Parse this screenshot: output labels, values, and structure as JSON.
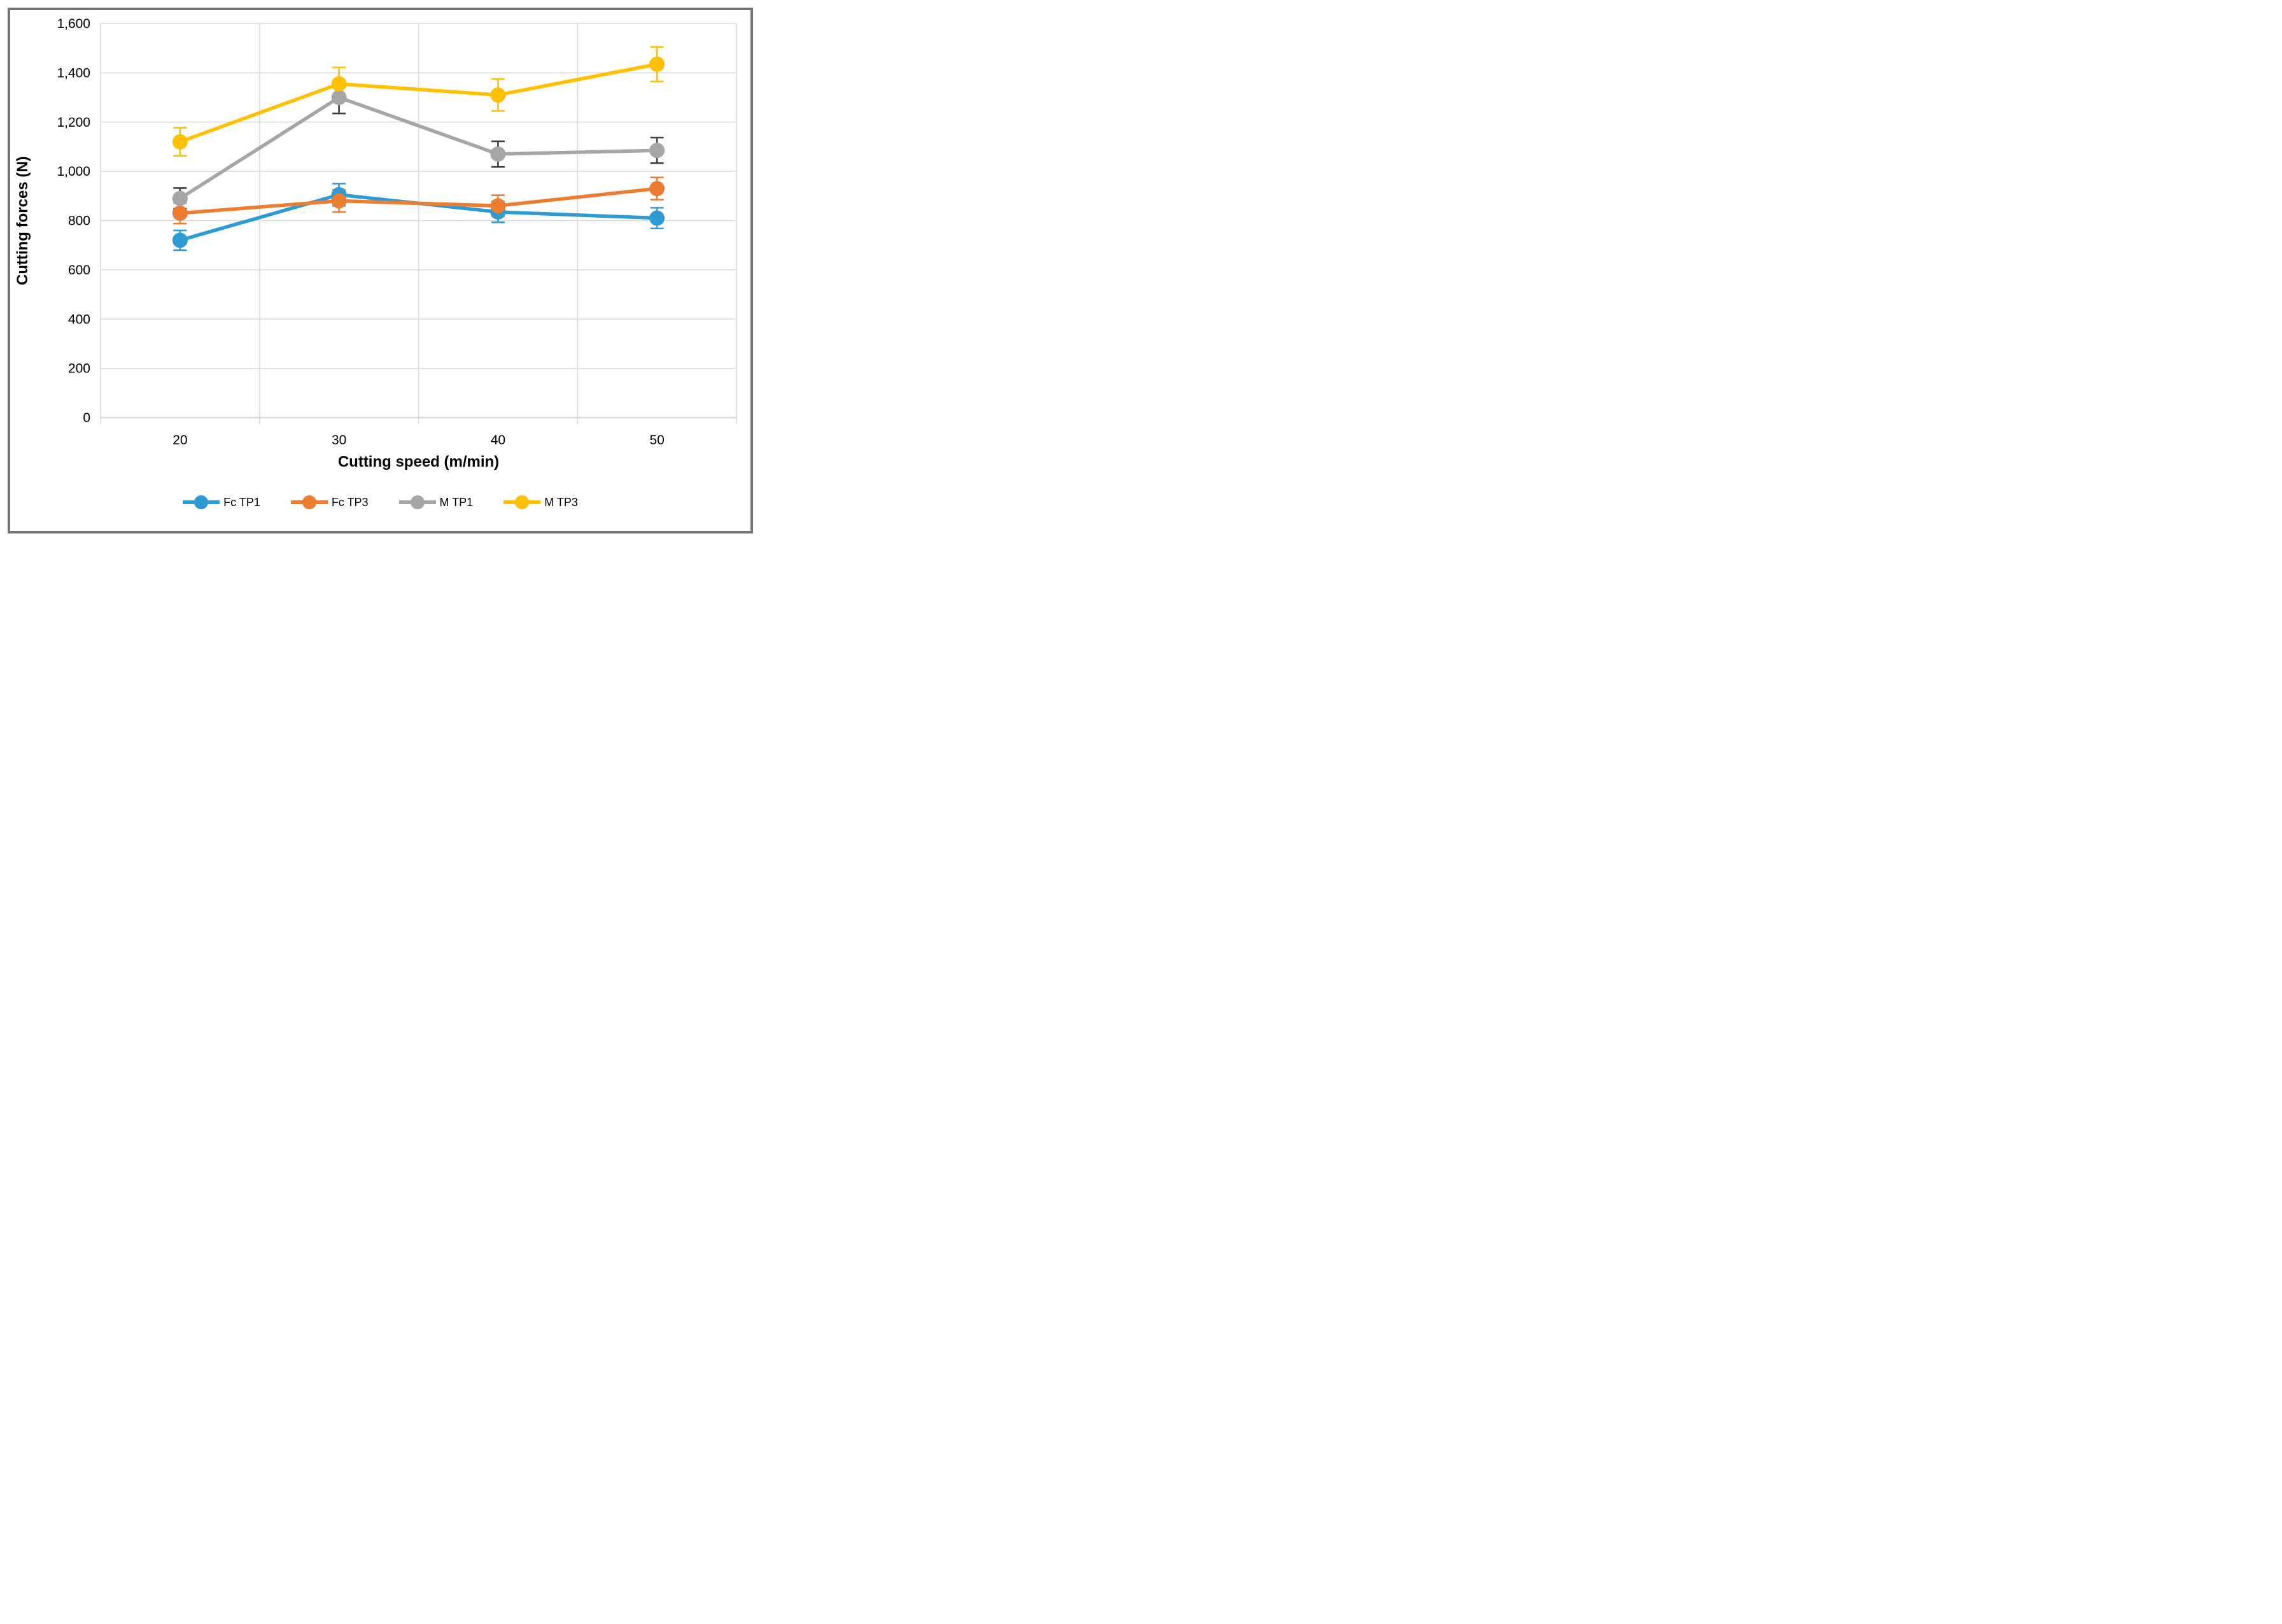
{
  "figure": {
    "kind": "scientific line chart with error bars"
  },
  "chart_data": {
    "type": "line",
    "title": "",
    "xlabel": "Cutting speed (m/min)",
    "ylabel": "Cutting forces (N)",
    "categories": [
      "20",
      "30",
      "40",
      "50"
    ],
    "ylim": [
      0,
      1600
    ],
    "y_tick_step": 200,
    "y_tick_labels": [
      "0",
      "200",
      "400",
      "600",
      "800",
      "1,000",
      "1,200",
      "1,400",
      "1,600"
    ],
    "grid": true,
    "legend_position": "bottom",
    "series": [
      {
        "name": "Fc TP1",
        "color": "#2E9BD5",
        "error_color": "#2E9BD5",
        "values": [
          720,
          905,
          835,
          810
        ],
        "errors": [
          40,
          45,
          42,
          42
        ]
      },
      {
        "name": "Fc TP3",
        "color": "#ED7D31",
        "error_color": "#ED7D31",
        "values": [
          830,
          880,
          860,
          930
        ],
        "errors": [
          42,
          45,
          43,
          45
        ]
      },
      {
        "name": "M TP1",
        "color": "#A6A6A6",
        "error_color": "#404040",
        "values": [
          890,
          1300,
          1070,
          1085
        ],
        "errors": [
          42,
          65,
          52,
          52
        ]
      },
      {
        "name": "M TP3",
        "color": "#FFC000",
        "error_color": "#FFC000",
        "values": [
          1120,
          1355,
          1310,
          1435
        ],
        "errors": [
          57,
          67,
          65,
          70
        ]
      }
    ],
    "colors": {
      "gridline": "#D9D9D9",
      "axis_line": "#D9D9D9",
      "text": "#000000",
      "frame_border": "#7A736F",
      "background": "#FFFFFF"
    }
  }
}
